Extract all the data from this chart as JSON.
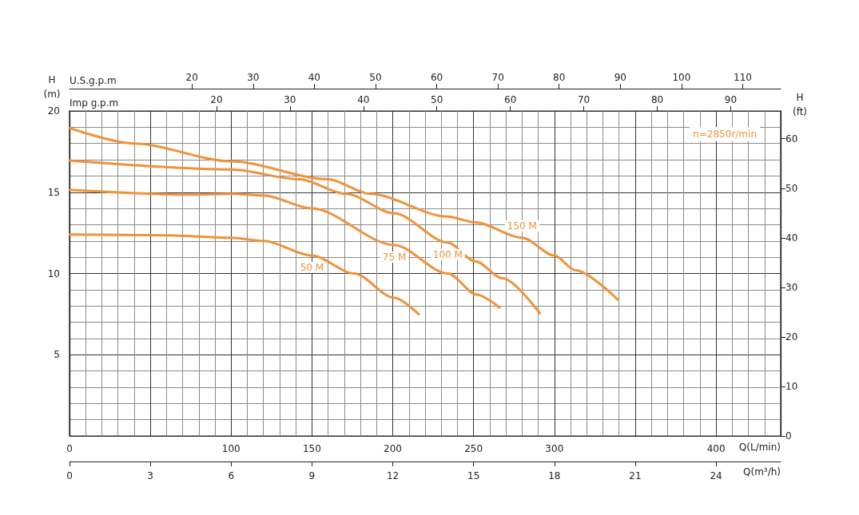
{
  "chart_data": [
    {
      "type": "line",
      "xlabel": "Q(L/min)",
      "ylabel": "H\n(m)",
      "y2label": "H\n(ft)",
      "x2label": "U.S.g.p.m",
      "xlim": [
        0,
        440
      ],
      "xticks": [
        0,
        100,
        150,
        200,
        250,
        300,
        400
      ],
      "x2lim": [
        0,
        116.2
      ],
      "x2ticks": [
        20,
        30,
        40,
        50,
        60,
        70,
        80,
        90,
        100,
        110
      ],
      "ylim": [
        0,
        20
      ],
      "yticks": [
        5,
        10,
        15,
        20
      ],
      "y2lim": [
        0,
        65.6
      ],
      "y2ticks": [
        0,
        10,
        20,
        30,
        40,
        50,
        60
      ],
      "grid": true,
      "marker": "none",
      "line_style": "solid",
      "annotations": [
        "n=2850r/min"
      ],
      "series": [
        {
          "name": "150 M",
          "color": "#f0923a",
          "x": [
            0,
            40,
            100,
            160,
            186,
            234,
            251,
            280,
            300,
            313,
            339
          ],
          "values": [
            18.95,
            18.0,
            16.9,
            15.8,
            14.9,
            13.5,
            13.15,
            12.2,
            11.1,
            10.2,
            8.4
          ]
        },
        {
          "name": "100 M",
          "color": "#f0923a",
          "x": [
            0,
            100,
            142,
            171,
            201,
            234,
            251,
            268,
            291
          ],
          "values": [
            16.95,
            16.4,
            15.8,
            14.9,
            13.7,
            11.9,
            10.75,
            9.7,
            7.55
          ]
        },
        {
          "name": "75 M",
          "color": "#f0923a",
          "x": [
            0,
            76,
            100,
            120,
            150,
            201,
            234,
            252,
            266
          ],
          "values": [
            15.15,
            14.85,
            14.9,
            14.8,
            14.0,
            11.75,
            10.0,
            8.7,
            7.9
          ]
        },
        {
          "name": "50 M",
          "color": "#f0923a",
          "x": [
            0,
            60,
            100,
            120,
            150,
            176,
            201,
            216
          ],
          "values": [
            12.4,
            12.35,
            12.2,
            12.0,
            11.1,
            10.0,
            8.5,
            7.5
          ]
        }
      ]
    },
    {
      "type": "line",
      "xlabel": "Q(m³/h)",
      "x2label": "Imp g.p.m",
      "xlim": [
        0,
        26.4
      ],
      "xticks": [
        0,
        3,
        6,
        9,
        12,
        15,
        18,
        21,
        24
      ],
      "x2lim": [
        0,
        96.8
      ],
      "x2ticks": [
        20,
        30,
        40,
        50,
        60,
        70,
        80,
        90
      ],
      "ylim": [
        0,
        20
      ],
      "tick_labels": "x"
    }
  ]
}
